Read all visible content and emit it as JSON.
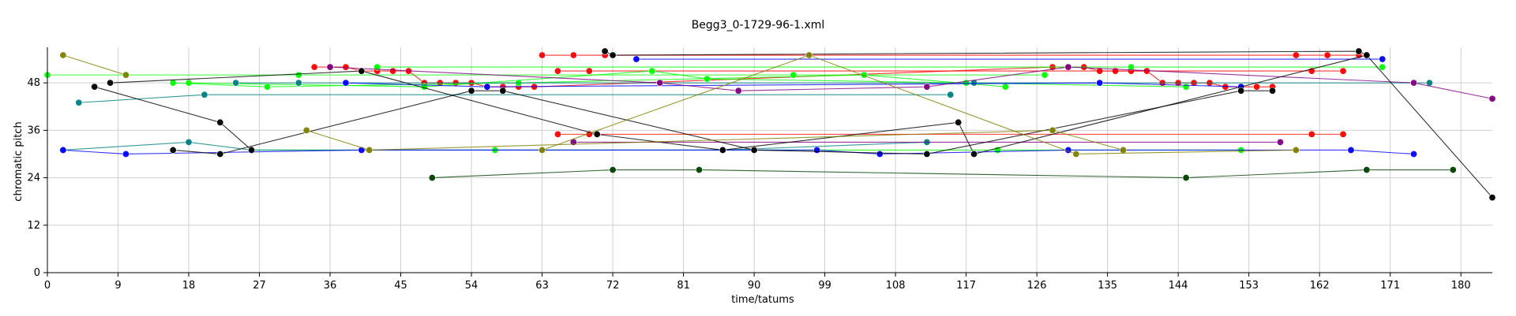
{
  "chart_data": {
    "type": "line",
    "title": "Begg3_0-1729-96-1.xml",
    "xlabel": "time/tatums",
    "ylabel": "chromatic pitch",
    "xlim": [
      0,
      184
    ],
    "ylim": [
      0,
      57
    ],
    "xticks": [
      0,
      9,
      18,
      27,
      36,
      45,
      54,
      63,
      72,
      81,
      90,
      99,
      108,
      117,
      126,
      135,
      144,
      153,
      162,
      171,
      180
    ],
    "yticks": [
      0,
      12,
      24,
      36,
      48
    ],
    "grid": true,
    "series": [
      {
        "color": "#ff0000",
        "points": [
          [
            34,
            52
          ],
          [
            36,
            52
          ],
          [
            38,
            52
          ],
          [
            40,
            51
          ],
          [
            42,
            51
          ],
          [
            44,
            51
          ],
          [
            46,
            51
          ],
          [
            48,
            48
          ],
          [
            50,
            48
          ],
          [
            52,
            48
          ],
          [
            54,
            48
          ],
          [
            56,
            47
          ],
          [
            58,
            47
          ],
          [
            60,
            47
          ],
          [
            62,
            47
          ],
          [
            128,
            52
          ],
          [
            130,
            52
          ],
          [
            132,
            52
          ],
          [
            134,
            51
          ],
          [
            136,
            51
          ],
          [
            138,
            51
          ],
          [
            140,
            51
          ],
          [
            142,
            48
          ],
          [
            144,
            48
          ],
          [
            146,
            48
          ],
          [
            148,
            48
          ],
          [
            150,
            47
          ],
          [
            152,
            47
          ],
          [
            154,
            47
          ],
          [
            156,
            47
          ]
        ]
      },
      {
        "color": "#ff0000",
        "points": [
          [
            63,
            55
          ],
          [
            67,
            55
          ],
          [
            71,
            55
          ],
          [
            159,
            55
          ],
          [
            163,
            55
          ],
          [
            167,
            55
          ]
        ]
      },
      {
        "color": "#ff0000",
        "points": [
          [
            65,
            51
          ],
          [
            69,
            51
          ],
          [
            161,
            51
          ],
          [
            165,
            51
          ]
        ]
      },
      {
        "color": "#ff0000",
        "points": [
          [
            65,
            35
          ],
          [
            69,
            35
          ],
          [
            161,
            35
          ],
          [
            165,
            35
          ]
        ]
      },
      {
        "color": "#00ff00",
        "points": [
          [
            0,
            50
          ],
          [
            10,
            50
          ],
          [
            32,
            50
          ],
          [
            95,
            50
          ],
          [
            127,
            50
          ]
        ]
      },
      {
        "color": "#00ff00",
        "points": [
          [
            42,
            52
          ],
          [
            138,
            52
          ],
          [
            170,
            52
          ]
        ]
      },
      {
        "color": "#00ff00",
        "points": [
          [
            18,
            48
          ],
          [
            48,
            47
          ],
          [
            77,
            51
          ],
          [
            84,
            49
          ],
          [
            117,
            48
          ],
          [
            145,
            47
          ]
        ]
      },
      {
        "color": "#00ff00",
        "points": [
          [
            16,
            48
          ],
          [
            28,
            47
          ],
          [
            60,
            48
          ],
          [
            104,
            50
          ],
          [
            122,
            47
          ]
        ]
      },
      {
        "color": "#00ff00",
        "points": [
          [
            26,
            31
          ],
          [
            57,
            31
          ],
          [
            121,
            31
          ],
          [
            152,
            31
          ]
        ]
      },
      {
        "color": "#008080",
        "points": [
          [
            4,
            43
          ],
          [
            20,
            45
          ],
          [
            115,
            45
          ]
        ]
      },
      {
        "color": "#008080",
        "points": [
          [
            2,
            31
          ],
          [
            18,
            33
          ],
          [
            26,
            31
          ],
          [
            86,
            31
          ],
          [
            112,
            33
          ]
        ]
      },
      {
        "color": "#008080",
        "points": [
          [
            24,
            48
          ],
          [
            32,
            48
          ],
          [
            118,
            48
          ],
          [
            176,
            48
          ]
        ]
      },
      {
        "color": "#0000ff",
        "points": [
          [
            2,
            31
          ],
          [
            10,
            30
          ],
          [
            40,
            31
          ],
          [
            98,
            31
          ],
          [
            106,
            30
          ],
          [
            130,
            31
          ],
          [
            166,
            31
          ],
          [
            174,
            30
          ]
        ]
      },
      {
        "color": "#0000ff",
        "points": [
          [
            38,
            48
          ],
          [
            56,
            47
          ],
          [
            134,
            48
          ],
          [
            152,
            47
          ]
        ]
      },
      {
        "color": "#0000ff",
        "points": [
          [
            75,
            54
          ],
          [
            170,
            54
          ]
        ]
      },
      {
        "color": "#800080",
        "points": [
          [
            36,
            52
          ],
          [
            78,
            48
          ],
          [
            88,
            46
          ],
          [
            112,
            47
          ],
          [
            130,
            52
          ],
          [
            174,
            48
          ],
          [
            184,
            44
          ]
        ]
      },
      {
        "color": "#800080",
        "points": [
          [
            67,
            33
          ],
          [
            157,
            33
          ]
        ]
      },
      {
        "color": "#000000",
        "points": [
          [
            6,
            47
          ],
          [
            22,
            38
          ],
          [
            26,
            31
          ]
        ]
      },
      {
        "color": "#000000",
        "points": [
          [
            8,
            48
          ],
          [
            40,
            51
          ],
          [
            70,
            35
          ],
          [
            86,
            31
          ],
          [
            116,
            38
          ],
          [
            118,
            30
          ],
          [
            168,
            55
          ],
          [
            184,
            19
          ]
        ]
      },
      {
        "color": "#000000",
        "points": [
          [
            16,
            31
          ],
          [
            22,
            30
          ],
          [
            54,
            46
          ],
          [
            58,
            46
          ],
          [
            90,
            31
          ],
          [
            112,
            30
          ],
          [
            152,
            46
          ],
          [
            156,
            46
          ]
        ]
      },
      {
        "color": "#000000",
        "points": [
          [
            71,
            56
          ],
          [
            72,
            55
          ],
          [
            167,
            56
          ],
          [
            168,
            55
          ]
        ]
      },
      {
        "color": "#808000",
        "points": [
          [
            2,
            55
          ],
          [
            10,
            50
          ]
        ]
      },
      {
        "color": "#808000",
        "points": [
          [
            33,
            36
          ],
          [
            41,
            31
          ],
          [
            128,
            36
          ],
          [
            137,
            31
          ]
        ]
      },
      {
        "color": "#808000",
        "points": [
          [
            63,
            31
          ],
          [
            97,
            55
          ],
          [
            131,
            30
          ],
          [
            159,
            31
          ]
        ]
      },
      {
        "color": "#004000",
        "points": [
          [
            49,
            24
          ],
          [
            72,
            26
          ],
          [
            83,
            26
          ],
          [
            145,
            24
          ],
          [
            168,
            26
          ],
          [
            179,
            26
          ]
        ]
      }
    ]
  }
}
